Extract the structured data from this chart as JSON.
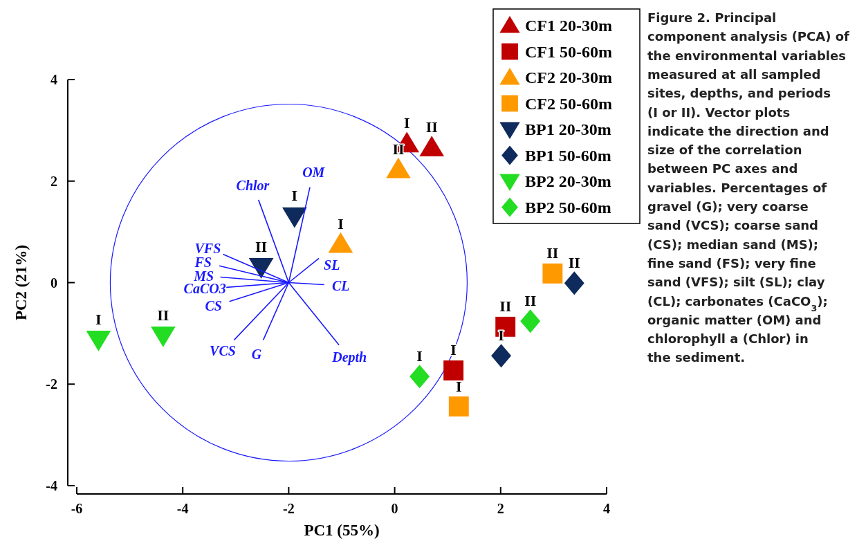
{
  "chart_data": {
    "type": "scatter",
    "xlabel": "PC1 (55%)",
    "ylabel": "PC2 (21%)",
    "xlim": [
      -6,
      4
    ],
    "ylim": [
      -4,
      4
    ],
    "xticks": [
      -6,
      -4,
      -2,
      0,
      2,
      4
    ],
    "yticks": [
      -4,
      -2,
      0,
      2,
      4
    ],
    "grid": false,
    "legend": "top right",
    "series": [
      {
        "name": "CF1 20-30m",
        "color": "#c00000",
        "marker": "triangle",
        "x": [
          0.23,
          0.7
        ],
        "values": [
          2.74,
          2.66
        ]
      },
      {
        "name": "CF1 50-60m",
        "color": "#c00000",
        "marker": "square",
        "x": [
          2.09,
          1.11
        ],
        "values": [
          -0.87,
          -1.73
        ]
      },
      {
        "name": "CF2 20-30m",
        "color": "#ff9900",
        "marker": "triangle",
        "x": [
          0.07,
          -1.02
        ],
        "values": [
          2.23,
          0.76
        ]
      },
      {
        "name": "CF2 50-60m",
        "color": "#ff9900",
        "marker": "square",
        "x": [
          2.98,
          1.21
        ],
        "values": [
          0.18,
          -2.44
        ]
      },
      {
        "name": "BP1 20-30m",
        "color": "#0f2a5c",
        "marker": "triangle-down",
        "x": [
          -1.89,
          -2.52
        ],
        "values": [
          1.31,
          0.31
        ]
      },
      {
        "name": "BP1 50-60m",
        "color": "#0f2a5c",
        "marker": "diamond",
        "x": [
          3.39,
          2.01
        ],
        "values": [
          -0.01,
          -1.44
        ]
      },
      {
        "name": "BP2 20-30m",
        "color": "#22dd22",
        "marker": "triangle-down",
        "x": [
          -5.59,
          -4.37
        ],
        "values": [
          -1.12,
          -1.04
        ]
      },
      {
        "name": "BP2 50-60m",
        "color": "#22dd22",
        "marker": "diamond",
        "x": [
          2.56,
          0.47
        ],
        "values": [
          -0.76,
          -1.85
        ]
      },
      {
        "name": "Chlor",
        "type": "line",
        "color": "#1a1aff",
        "x": [
          -2,
          -2.57
        ],
        "values": [
          0,
          1.63
        ]
      },
      {
        "name": "OM",
        "type": "line",
        "color": "#1a1aff",
        "x": [
          -2,
          -1.6
        ],
        "values": [
          0,
          1.88
        ]
      },
      {
        "name": "VFS",
        "type": "line",
        "color": "#1a1aff",
        "x": [
          -2,
          -3.24
        ],
        "values": [
          0,
          0.56
        ]
      },
      {
        "name": "FS",
        "type": "line",
        "color": "#1a1aff",
        "x": [
          -2,
          -3.31
        ],
        "values": [
          0,
          0.33
        ]
      },
      {
        "name": "MS",
        "type": "line",
        "color": "#1a1aff",
        "x": [
          -2,
          -3.29
        ],
        "values": [
          0,
          0.11
        ]
      },
      {
        "name": "CaCO3",
        "type": "line",
        "color": "#1a1aff",
        "x": [
          -2,
          -3.27
        ],
        "values": [
          0,
          -0.1
        ]
      },
      {
        "name": "CS",
        "type": "line",
        "color": "#1a1aff",
        "x": [
          -2,
          -3.12
        ],
        "values": [
          0,
          -0.37
        ]
      },
      {
        "name": "VCS",
        "type": "line",
        "color": "#1a1aff",
        "x": [
          -2,
          -3.03
        ],
        "values": [
          0,
          -1.13
        ]
      },
      {
        "name": "G",
        "type": "line",
        "color": "#1a1aff",
        "x": [
          -2,
          -2.48
        ],
        "values": [
          0,
          -1.13
        ]
      },
      {
        "name": "SL",
        "type": "line",
        "color": "#1a1aff",
        "x": [
          -2,
          -1.43
        ],
        "values": [
          0,
          0.48
        ]
      },
      {
        "name": "CL",
        "type": "line",
        "color": "#1a1aff",
        "x": [
          -2,
          -1.33
        ],
        "values": [
          0,
          -0.04
        ]
      },
      {
        "name": "Depth",
        "type": "line",
        "color": "#1a1aff",
        "x": [
          -2,
          -1.05
        ],
        "values": [
          0,
          -1.23
        ]
      }
    ],
    "annotations": [
      {
        "text": "I",
        "x": 0.23,
        "y": 2.74
      },
      {
        "text": "II",
        "x": 0.7,
        "y": 2.66
      },
      {
        "text": "II",
        "x": 2.09,
        "y": -0.87
      },
      {
        "text": "I",
        "x": 1.11,
        "y": -1.73
      },
      {
        "text": "II",
        "x": 0.07,
        "y": 2.23
      },
      {
        "text": "I",
        "x": -1.02,
        "y": 0.76
      },
      {
        "text": "II",
        "x": 2.98,
        "y": 0.18
      },
      {
        "text": "I",
        "x": 1.21,
        "y": -2.44
      },
      {
        "text": "I",
        "x": -1.89,
        "y": 1.31
      },
      {
        "text": "II",
        "x": -2.52,
        "y": 0.31
      },
      {
        "text": "II",
        "x": 3.39,
        "y": -0.01
      },
      {
        "text": "I",
        "x": 2.01,
        "y": -1.44
      },
      {
        "text": "I",
        "x": -5.59,
        "y": -1.12
      },
      {
        "text": "II",
        "x": -4.37,
        "y": -1.04
      },
      {
        "text": "II",
        "x": 2.56,
        "y": -0.76
      },
      {
        "text": "I",
        "x": 0.47,
        "y": -1.85
      },
      "Figure 2. Principal component analysis (PCA) of the environmental variables measured at all sampled sites, depths, and periods (I or II). Vector plots indicate the direction and size of the correlation between PC axes and variables. Percentages of gravel (G); very coarse sand (VCS); coarse sand (CS); median sand (MS); fine sand (FS); very fine sand (VFS); silt (SL); clay (CL); carbonates (CaCO$_{3}$); organic matter (OM) and chlorophyll a (Chlor) in the sediment."
    ]
  }
}
